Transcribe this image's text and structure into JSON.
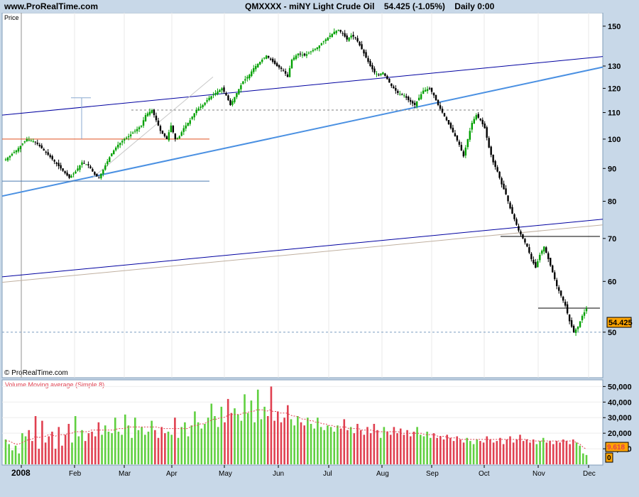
{
  "header": {
    "site": "www.ProRealTime.com",
    "symbol": "QMXXXX - miNY Light Crude Oil",
    "last": "54.425 (-1.05%)",
    "timeframe": "Daily  0:00"
  },
  "watermark": "© ProRealTime.com",
  "price_badge": "54.425",
  "volume_badge": "9.618",
  "volume_zero_badge": "0",
  "chart_data": [
    {
      "type": "candlestick",
      "title": "Price",
      "ylim": [
        44,
        155
      ],
      "yticks": [
        50,
        60,
        70,
        80,
        90,
        100,
        110,
        120,
        130,
        150
      ],
      "x_labels": [
        "2008",
        "Feb",
        "Mar",
        "Apr",
        "May",
        "Jun",
        "Jul",
        "Aug",
        "Sep",
        "Oct",
        "Nov",
        "Dec"
      ],
      "last_price": 54.425,
      "change_pct": -1.05,
      "colors": {
        "up": "#00a000",
        "down": "#000000",
        "channel": "#0000a0",
        "trend": "#4a90e2",
        "support": "#e05020",
        "level": "#4a7ab0"
      },
      "horizontal_levels": [
        100,
        86,
        111,
        70.5,
        54.5,
        50
      ],
      "close_path": [
        [
          0,
          93
        ],
        [
          5,
          96
        ],
        [
          10,
          100
        ],
        [
          14,
          99
        ],
        [
          18,
          96
        ],
        [
          22,
          93
        ],
        [
          26,
          90
        ],
        [
          30,
          87
        ],
        [
          33,
          89
        ],
        [
          36,
          92
        ],
        [
          39,
          91
        ],
        [
          42,
          88
        ],
        [
          44,
          87
        ],
        [
          47,
          91
        ],
        [
          50,
          95
        ],
        [
          53,
          98
        ],
        [
          56,
          100
        ],
        [
          58,
          101
        ],
        [
          61,
          103
        ],
        [
          64,
          105
        ],
        [
          66,
          109
        ],
        [
          69,
          111
        ],
        [
          71,
          107
        ],
        [
          73,
          103
        ],
        [
          76,
          100
        ],
        [
          78,
          105
        ],
        [
          80,
          100
        ],
        [
          82,
          101
        ],
        [
          84,
          104
        ],
        [
          87,
          107
        ],
        [
          90,
          111
        ],
        [
          93,
          113
        ],
        [
          96,
          116
        ],
        [
          99,
          118
        ],
        [
          102,
          120
        ],
        [
          104,
          117
        ],
        [
          106,
          113
        ],
        [
          109,
          118
        ],
        [
          112,
          123
        ],
        [
          115,
          126
        ],
        [
          117,
          129
        ],
        [
          120,
          132
        ],
        [
          123,
          135
        ],
        [
          126,
          132
        ],
        [
          128,
          130
        ],
        [
          131,
          128
        ],
        [
          133,
          125
        ],
        [
          135,
          133
        ],
        [
          138,
          136
        ],
        [
          141,
          135
        ],
        [
          144,
          137
        ],
        [
          147,
          139
        ],
        [
          150,
          142
        ],
        [
          153,
          145
        ],
        [
          155,
          147
        ],
        [
          157,
          148
        ],
        [
          159,
          146
        ],
        [
          161,
          143
        ],
        [
          163,
          145
        ],
        [
          165,
          144
        ],
        [
          167,
          140
        ],
        [
          170,
          134
        ],
        [
          172,
          130
        ],
        [
          174,
          127
        ],
        [
          176,
          126
        ],
        [
          178,
          127
        ],
        [
          180,
          124
        ],
        [
          182,
          121
        ],
        [
          185,
          118
        ],
        [
          188,
          117
        ],
        [
          190,
          115
        ],
        [
          193,
          113
        ],
        [
          195,
          116
        ],
        [
          197,
          119
        ],
        [
          200,
          120
        ],
        [
          202,
          117
        ],
        [
          204,
          113
        ],
        [
          206,
          110
        ],
        [
          208,
          107
        ],
        [
          210,
          104
        ],
        [
          212,
          101
        ],
        [
          214,
          98
        ],
        [
          216,
          94
        ],
        [
          218,
          100
        ],
        [
          220,
          106
        ],
        [
          222,
          109
        ],
        [
          224,
          107
        ],
        [
          226,
          104
        ],
        [
          228,
          97
        ],
        [
          230,
          92
        ],
        [
          232,
          89
        ],
        [
          234,
          85
        ],
        [
          236,
          82
        ],
        [
          238,
          78
        ],
        [
          240,
          75
        ],
        [
          242,
          72
        ],
        [
          244,
          70
        ],
        [
          246,
          68
        ],
        [
          248,
          65
        ],
        [
          250,
          63
        ],
        [
          252,
          66
        ],
        [
          254,
          68
        ],
        [
          256,
          65
        ],
        [
          258,
          62
        ],
        [
          260,
          59
        ],
        [
          262,
          57
        ],
        [
          264,
          55
        ],
        [
          266,
          52
        ],
        [
          268,
          50
        ],
        [
          270,
          51
        ],
        [
          272,
          53
        ],
        [
          274,
          54.4
        ]
      ]
    },
    {
      "type": "bar",
      "title": "Volume Moving average (Simple 8)",
      "ylim": [
        0,
        52000
      ],
      "yticks": [
        "50,000",
        "40,000",
        "30,000",
        "20,000",
        "10,000"
      ],
      "last_value": 9618,
      "colors": {
        "up": "#60d040",
        "down": "#e04050",
        "average": "#e04050"
      },
      "values": [
        16000,
        13000,
        9000,
        12000,
        7000,
        20000,
        18000,
        22000,
        15000,
        31000,
        10000,
        28000,
        14000,
        18000,
        21000,
        10000,
        24000,
        12000,
        19000,
        26000,
        14000,
        31000,
        18000,
        22000,
        15000,
        20000,
        21000,
        18000,
        27000,
        19000,
        25000,
        21000,
        20000,
        30000,
        21000,
        19000,
        32000,
        25000,
        17000,
        30000,
        22000,
        24000,
        19000,
        21000,
        28000,
        22000,
        17000,
        24000,
        20000,
        21000,
        19000,
        30000,
        17000,
        24000,
        27000,
        18000,
        25000,
        34000,
        27000,
        23000,
        26000,
        30000,
        39000,
        31000,
        24000,
        37000,
        27000,
        42000,
        33000,
        36000,
        32000,
        28000,
        45000,
        33000,
        41000,
        27000,
        48000,
        29000,
        37000,
        31000,
        50000,
        28000,
        34000,
        27000,
        30000,
        38000,
        29000,
        25000,
        31000,
        27000,
        25000,
        30000,
        26000,
        23000,
        30000,
        24000,
        22000,
        25000,
        24000,
        21000,
        25000,
        23000,
        29000,
        22000,
        24000,
        20000,
        26000,
        22000,
        19000,
        24000,
        20000,
        26000,
        22000,
        17000,
        24000,
        21000,
        19000,
        24000,
        20000,
        23000,
        19000,
        22000,
        18000,
        21000,
        24000,
        19000,
        18000,
        21000,
        17000,
        20000,
        17000,
        18000,
        16000,
        19000,
        17000,
        15000,
        18000,
        16000,
        14000,
        17000,
        15000,
        13000,
        16000,
        15000,
        14000,
        18000,
        16000,
        14000,
        15000,
        17000,
        13000,
        16000,
        18000,
        14000,
        16000,
        19000,
        15000,
        16000,
        14000,
        16000,
        13000,
        15000,
        17000,
        14000,
        15000,
        13000,
        15000,
        14000,
        16000,
        15000,
        13000,
        16000,
        14000,
        12000,
        7000,
        6000
      ],
      "average": [
        15000,
        15000,
        14000,
        13000,
        13000,
        14000,
        15000,
        16000,
        16000,
        18000,
        17000,
        18000,
        18000,
        19000,
        19000,
        18000,
        19000,
        19000,
        19000,
        20000,
        20000,
        21000,
        21000,
        21000,
        21000,
        21000,
        22000,
        22000,
        22000,
        22000,
        22000,
        22000,
        22000,
        22000,
        23000,
        23000,
        23000,
        24000,
        24000,
        24000,
        24000,
        24000,
        24000,
        24000,
        24000,
        24000,
        24000,
        23000,
        23000,
        23000,
        23000,
        23000,
        23000,
        23000,
        23000,
        23000,
        24000,
        25000,
        25000,
        26000,
        26000,
        27000,
        28000,
        29000,
        29000,
        30000,
        30000,
        31000,
        32000,
        32000,
        32000,
        32000,
        33000,
        33000,
        34000,
        34000,
        35000,
        35000,
        35000,
        34000,
        35000,
        34000,
        34000,
        33000,
        33000,
        33000,
        32000,
        31000,
        31000,
        30000,
        29000,
        29000,
        28000,
        28000,
        27000,
        27000,
        26000,
        26000,
        25000,
        25000,
        24000,
        24000,
        24000,
        24000,
        23000,
        23000,
        23000,
        23000,
        22000,
        22000,
        22000,
        22000,
        21000,
        21000,
        21000,
        21000,
        21000,
        21000,
        21000,
        21000,
        20000,
        20000,
        20000,
        20000,
        20000,
        20000,
        20000,
        19000,
        19000,
        19000,
        19000,
        18000,
        18000,
        18000,
        17000,
        17000,
        17000,
        17000,
        16000,
        16000,
        16000,
        16000,
        16000,
        16000,
        16000,
        16000,
        16000,
        16000,
        16000,
        16000,
        16000,
        16000,
        16000,
        16000,
        16000,
        16000,
        16000,
        16000,
        16000,
        15000,
        15000,
        15000,
        15000,
        15000,
        15000,
        15000,
        15000,
        15000,
        15000,
        15000,
        15000,
        15000,
        15000,
        14000,
        13000,
        11000,
        9618
      ]
    }
  ]
}
